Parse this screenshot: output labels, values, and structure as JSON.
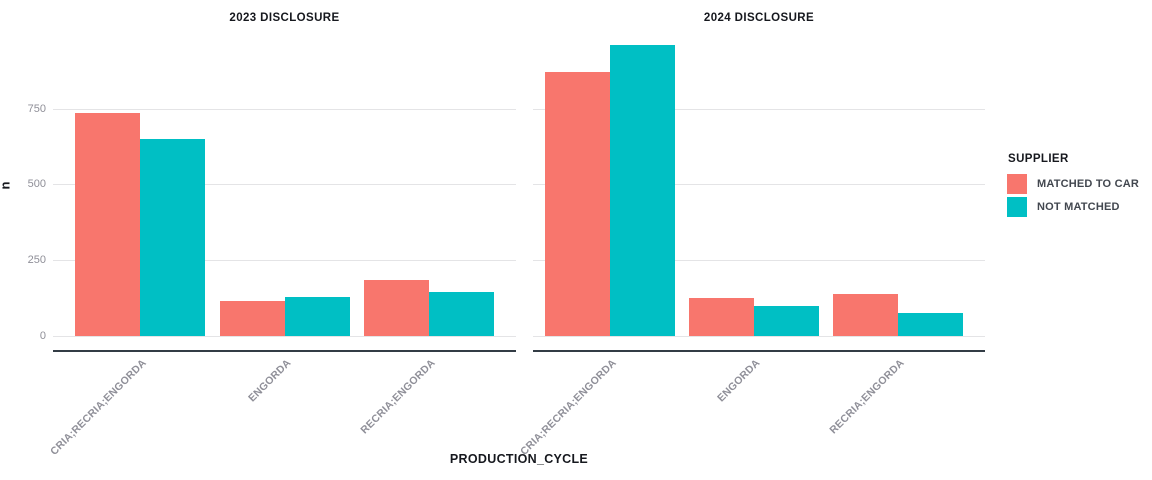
{
  "chart_data": {
    "type": "bar",
    "categories": [
      "CRIA;RECRIA;ENGORDA",
      "ENGORDA",
      "RECRIA;ENGORDA"
    ],
    "facets": [
      {
        "label": "2023 DISCLOSURE",
        "series": [
          {
            "name": "MATCHED TO CAR",
            "values": [
              735,
              115,
              185
            ]
          },
          {
            "name": "NOT MATCHED",
            "values": [
              650,
              130,
              145
            ]
          }
        ]
      },
      {
        "label": "2024 DISCLOSURE",
        "series": [
          {
            "name": "MATCHED TO CAR",
            "values": [
              870,
              125,
              140
            ]
          },
          {
            "name": "NOT MATCHED",
            "values": [
              960,
              100,
              75
            ]
          }
        ]
      }
    ],
    "xlabel": "PRODUCTION_CYCLE",
    "ylabel": "n",
    "yticks": [
      0,
      250,
      500,
      750
    ],
    "ylim": [
      0,
      1010
    ],
    "grid": "horizontal-major",
    "legend": {
      "title": "SUPPLIER",
      "position": "right",
      "entries": [
        {
          "label": "MATCHED TO CAR",
          "color": "#F8766D"
        },
        {
          "label": "NOT MATCHED",
          "color": "#00BFC4"
        }
      ]
    },
    "colors": {
      "matched": "#F8766D",
      "not_matched": "#00BFC4",
      "gridline": "#E4E4E6",
      "axis_line": "#333C45",
      "tick_text": "#8F8F98",
      "title_text": "#16181E"
    }
  }
}
